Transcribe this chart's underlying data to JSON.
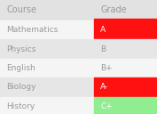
{
  "headers": [
    "Course",
    "Grade"
  ],
  "rows": [
    {
      "course": "Mathematics",
      "grade": "A",
      "color": "#ff1111"
    },
    {
      "course": "Physics",
      "grade": "B",
      "color": null
    },
    {
      "course": "English",
      "grade": "B+",
      "color": null
    },
    {
      "course": "Biology",
      "grade": "A-",
      "color": "#ff1111"
    },
    {
      "course": "History",
      "grade": "C+",
      "color": "#90ee90"
    }
  ],
  "bg_color": "#e8e8e8",
  "row_bg_even": "#f5f5f5",
  "row_bg_odd": "#e6e6e6",
  "header_bg": "#e2e2e2",
  "header_text_color": "#999999",
  "cell_text_color": "#999999",
  "highlighted_text_color": "#ffffff",
  "red_separator": "#ff1111",
  "col_split": 0.6,
  "font_size": 6.5,
  "header_font_size": 7.0
}
